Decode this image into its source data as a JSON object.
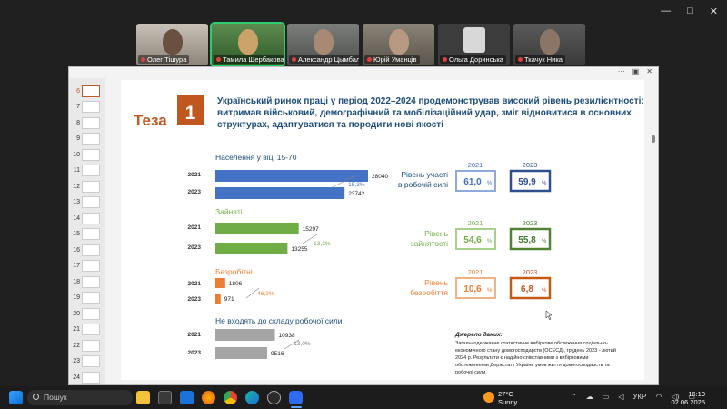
{
  "window": {
    "minimize": "—",
    "maximize": "□",
    "close": "✕"
  },
  "participants": [
    {
      "name": "Олег Тішура"
    },
    {
      "name": "Тамила Щербакова"
    },
    {
      "name": "Александр Цымбал"
    },
    {
      "name": "Юрій Уманців"
    },
    {
      "name": "Ольга Доринська"
    },
    {
      "name": "Ткачук Ника"
    }
  ],
  "ppt_top": {
    "more": "···",
    "layout": "▣",
    "close": "✕"
  },
  "thumbnails": [
    "6",
    "7",
    "8",
    "9",
    "10",
    "11",
    "12",
    "13",
    "14",
    "15",
    "16",
    "17",
    "18",
    "19",
    "20",
    "21",
    "22",
    "23",
    "24"
  ],
  "slide": {
    "badge_word": "Теза",
    "badge_num": "1",
    "heading_line1": "Український ринок праці у період 2022–2024 продемонстрував високий рівень резилієнтності:",
    "heading_line2": "витримав військовий, демографічний та мобілізаційний удар, зміг відновитися в основних",
    "heading_line3": "структурах, адаптуватися та породити нові якості",
    "groups": [
      {
        "title": "Населення у віці 15-70",
        "color": "#4472c4",
        "rows": [
          {
            "year": "2021",
            "value": "28040"
          },
          {
            "year": "2023",
            "value": "23742"
          }
        ],
        "change": "-15,3%"
      },
      {
        "title": "Зайняті",
        "color": "#70ad47",
        "rows": [
          {
            "year": "2021",
            "value": "15297"
          },
          {
            "year": "2023",
            "value": "13255"
          }
        ],
        "change": "-13,3%"
      },
      {
        "title": "Безробітні",
        "color": "#ed7d31",
        "rows": [
          {
            "year": "2021",
            "value": "1806"
          },
          {
            "year": "2023",
            "value": "971"
          }
        ],
        "change": "-46,2%"
      },
      {
        "title": "Не входять до складу робочої сили",
        "color": "#a5a5a5",
        "rows": [
          {
            "year": "2021",
            "value": "10938"
          },
          {
            "year": "2023",
            "value": "9516"
          }
        ],
        "change": "-13,0%"
      }
    ],
    "rates": [
      {
        "label1": "Рівень участі",
        "label2": "в робочій силі",
        "y2021": "2021",
        "y2023": "2023",
        "v2021": "61,0",
        "v2023": "59,9",
        "unit": "%"
      },
      {
        "label1": "Рівень",
        "label2": "зайнятості",
        "y2021": "2021",
        "y2023": "2023",
        "v2021": "54,6",
        "v2023": "55,8",
        "unit": "%"
      },
      {
        "label1": "Рівень",
        "label2": "безробіття",
        "y2021": "2021",
        "y2023": "2023",
        "v2021": "10,6",
        "v2023": "6,8",
        "unit": "%"
      }
    ],
    "source_title": "Джерело даних:",
    "source_lines": [
      "Загальнодержавне статистичне вибіркове обстеження соціально-",
      "економічного стану домогосподарств (ОСЕСД), грудень 2023 - лютий",
      "2024 р. Результати є надійно співставними з вибірковими",
      "обстеженнями Держстату України умов життя домогосподарств та",
      "робочої сили."
    ]
  },
  "taskbar": {
    "search_placeholder": "Пошук",
    "weather_temp": "27°C",
    "weather_desc": "Sunny",
    "lang": "УКР",
    "time": "16:10",
    "date": "02.06.2025"
  },
  "chart_data": {
    "type": "bar",
    "categories": [
      "2021",
      "2023"
    ],
    "series": [
      {
        "name": "Населення у віці 15-70",
        "values": [
          28040,
          23742
        ]
      },
      {
        "name": "Зайняті",
        "values": [
          15297,
          13255
        ]
      },
      {
        "name": "Безробітні",
        "values": [
          1806,
          971
        ]
      },
      {
        "name": "Не входять до складу робочої сили",
        "values": [
          10938,
          9516
        ]
      }
    ],
    "changes": [
      "-15,3%",
      "-13,3%",
      "-46,2%",
      "-13,0%"
    ],
    "orientation": "horizontal"
  }
}
